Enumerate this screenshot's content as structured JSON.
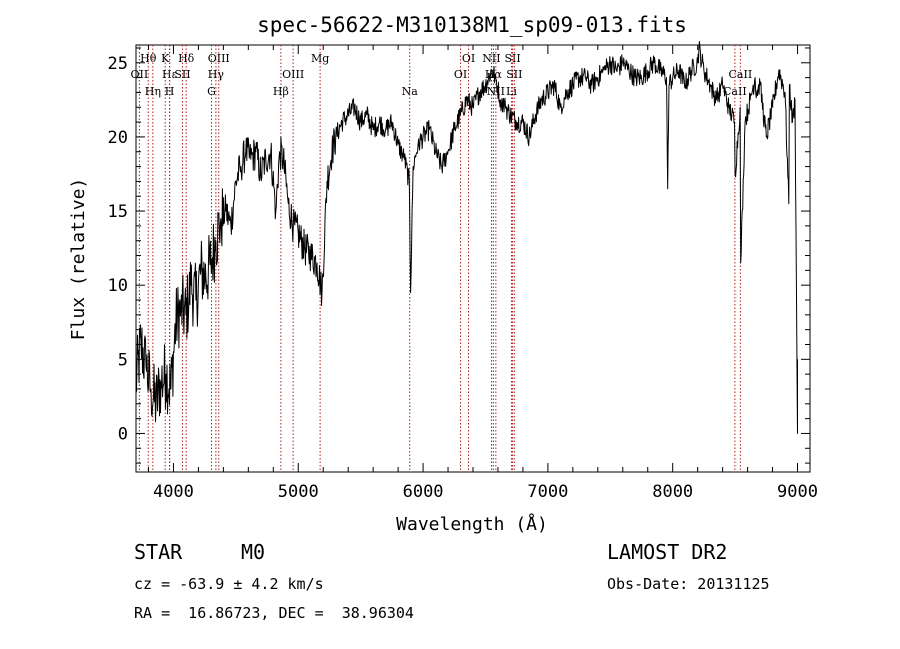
{
  "chart_data": {
    "type": "line",
    "title": "spec-56622-M310138M1_sp09-013.fits",
    "xlabel": "Wavelength (Å)",
    "ylabel": "Flux (relative)",
    "xlim": [
      3700,
      9100
    ],
    "ylim": [
      -2.6,
      26.2
    ],
    "xticks": [
      4000,
      5000,
      6000,
      7000,
      8000,
      9000
    ],
    "yticks": [
      0,
      5,
      10,
      15,
      20,
      25
    ],
    "grid": false,
    "series": [
      {
        "x": [
          3700,
          3740,
          3780,
          3820,
          3860,
          3900,
          3940,
          3980,
          4020,
          4060,
          4100,
          4140,
          4180,
          4220,
          4260,
          4300,
          4340,
          4380,
          4420,
          4460,
          4500,
          4540,
          4580,
          4620,
          4660,
          4700,
          4740,
          4780,
          4820,
          4850,
          4880,
          4920,
          4960,
          5000,
          5050,
          5100,
          5150,
          5190,
          5230,
          5270,
          5300,
          5350,
          5400,
          5450,
          5500,
          5550,
          5600,
          5650,
          5700,
          5750,
          5800,
          5850,
          5890,
          5900,
          5920,
          5960,
          6000,
          6050,
          6100,
          6150,
          6200,
          6250,
          6300,
          6350,
          6400,
          6450,
          6500,
          6550,
          6580,
          6620,
          6660,
          6700,
          6750,
          6800,
          6850,
          6900,
          6950,
          7000,
          7050,
          7100,
          7150,
          7200,
          7250,
          7300,
          7350,
          7400,
          7450,
          7500,
          7550,
          7600,
          7650,
          7700,
          7750,
          7800,
          7850,
          7900,
          7950,
          7960,
          7970,
          8000,
          8050,
          8100,
          8150,
          8200,
          8210,
          8250,
          8300,
          8350,
          8400,
          8450,
          8495,
          8500,
          8540,
          8545,
          8580,
          8620,
          8660,
          8665,
          8700,
          8750,
          8800,
          8850,
          8900,
          8930,
          8935,
          8960,
          8980,
          9000,
          9000
        ],
        "y": [
          3.5,
          6.0,
          4.5,
          3.0,
          2.0,
          3.5,
          4.0,
          3.0,
          7.5,
          8.5,
          8.0,
          10.0,
          9.0,
          11.0,
          10.5,
          11.5,
          13.0,
          14.5,
          15.0,
          14.0,
          17.0,
          18.0,
          19.0,
          18.5,
          19.0,
          17.5,
          18.5,
          19.0,
          15.0,
          19.0,
          18.5,
          15.5,
          14.0,
          13.5,
          12.5,
          12.0,
          11.5,
          9.5,
          17.0,
          19.0,
          20.0,
          21.0,
          21.5,
          22.0,
          21.0,
          21.5,
          20.5,
          21.0,
          20.5,
          21.0,
          19.5,
          18.5,
          17.0,
          9.5,
          18.0,
          19.5,
          20.0,
          20.5,
          19.0,
          18.0,
          19.0,
          20.5,
          21.5,
          22.5,
          22.0,
          23.0,
          23.5,
          24.5,
          24.0,
          22.5,
          22.0,
          21.5,
          21.0,
          21.0,
          20.0,
          21.5,
          22.5,
          23.0,
          23.5,
          22.0,
          23.0,
          23.5,
          24.0,
          24.0,
          23.5,
          24.0,
          24.5,
          25.0,
          24.5,
          25.0,
          24.5,
          24.0,
          24.0,
          24.5,
          25.0,
          24.5,
          24.0,
          16.5,
          23.5,
          24.0,
          24.5,
          23.5,
          24.5,
          25.0,
          26.0,
          24.5,
          23.5,
          22.5,
          23.5,
          22.0,
          21.0,
          17.5,
          22.0,
          11.5,
          21.0,
          22.5,
          24.0,
          23.0,
          23.5,
          20.0,
          22.0,
          24.5,
          23.0,
          15.5,
          23.5,
          21.0,
          22.5,
          0.0,
          5.0
        ]
      }
    ],
    "line_markers": [
      {
        "label": "Hθ",
        "x": 3798,
        "row": 1
      },
      {
        "label": "OII",
        "x": 3727,
        "row": 2
      },
      {
        "label": "K",
        "x": 3934,
        "row": 1
      },
      {
        "label": "Hε",
        "x": 3970,
        "row": 2
      },
      {
        "label": "H",
        "x": 3969,
        "row": 3
      },
      {
        "label": "Hη",
        "x": 3835,
        "row": 3
      },
      {
        "label": "Hδ",
        "x": 4102,
        "row": 1
      },
      {
        "label": "SII",
        "x": 4072,
        "row": 2
      },
      {
        "label": "OIII",
        "x": 4363,
        "row": 1
      },
      {
        "label": "Hγ",
        "x": 4340,
        "row": 2
      },
      {
        "label": "G",
        "x": 4305,
        "row": 3
      },
      {
        "label": "OIII",
        "x": 4959,
        "row": 2
      },
      {
        "label": "Hβ",
        "x": 4861,
        "row": 3
      },
      {
        "label": "Mg",
        "x": 5175,
        "row": 1
      },
      {
        "label": "Na",
        "x": 5893,
        "row": 3
      },
      {
        "label": "OI",
        "x": 6300,
        "row": 2
      },
      {
        "label": "OI",
        "x": 6364,
        "row": 1
      },
      {
        "label": "NII",
        "x": 6548,
        "row": 1
      },
      {
        "label": "Hα",
        "x": 6563,
        "row": 2
      },
      {
        "label": "NII",
        "x": 6583,
        "row": 3
      },
      {
        "label": "SII",
        "x": 6717,
        "row": 1
      },
      {
        "label": "SII",
        "x": 6731,
        "row": 2
      },
      {
        "label": "Li",
        "x": 6708,
        "row": 3
      },
      {
        "label": "CaII",
        "x": 8542,
        "row": 2
      },
      {
        "label": "CaII",
        "x": 8498,
        "row": 3
      }
    ]
  },
  "footer": {
    "class_label": "STAR",
    "subclass": "M0",
    "survey": "LAMOST DR2",
    "cz": "cz = -63.9 ± 4.2 km/s",
    "obs_date": "Obs-Date: 20131125",
    "coords": "RA =  16.86723, DEC =  38.96304"
  }
}
